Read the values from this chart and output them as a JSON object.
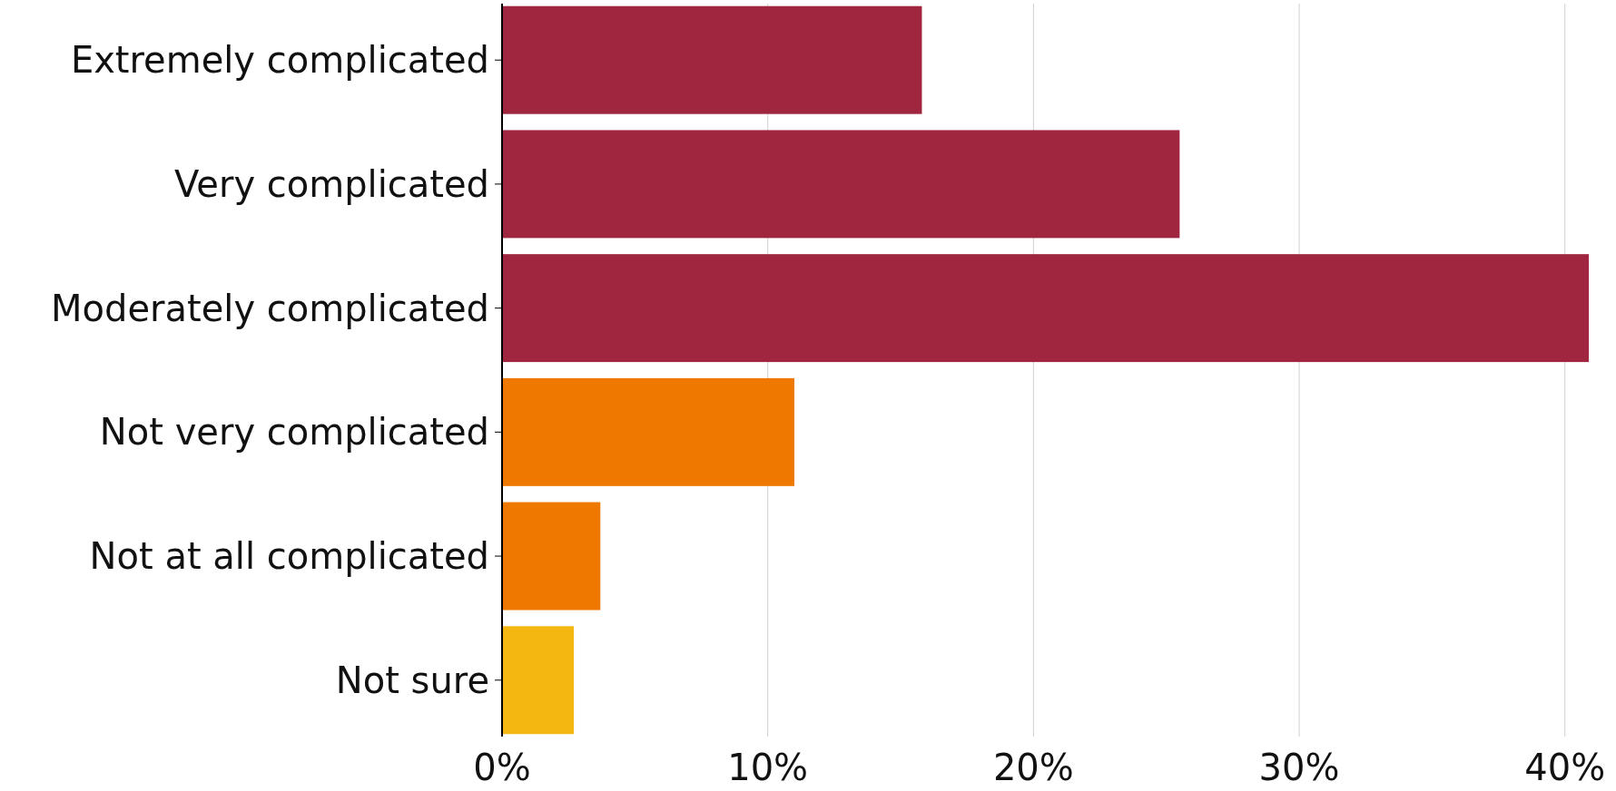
{
  "chart_data": {
    "type": "bar",
    "orientation": "horizontal",
    "categories": [
      "Extremely complicated",
      "Very complicated",
      "Moderately complicated",
      "Not very complicated",
      "Not at all complicated",
      "Not sure"
    ],
    "values": [
      15.8,
      25.5,
      40.9,
      11.0,
      3.7,
      2.7
    ],
    "colors": [
      "#a0263f",
      "#a0263f",
      "#a0263f",
      "#ee7800",
      "#ee7800",
      "#f4b610"
    ],
    "xlim": [
      0,
      41
    ],
    "xticks": [
      {
        "value": 0,
        "label": "0%"
      },
      {
        "value": 10,
        "label": "10%"
      },
      {
        "value": 20,
        "label": "20%"
      },
      {
        "value": 30,
        "label": "30%"
      },
      {
        "value": 40,
        "label": "40%"
      }
    ],
    "grid": "x"
  }
}
